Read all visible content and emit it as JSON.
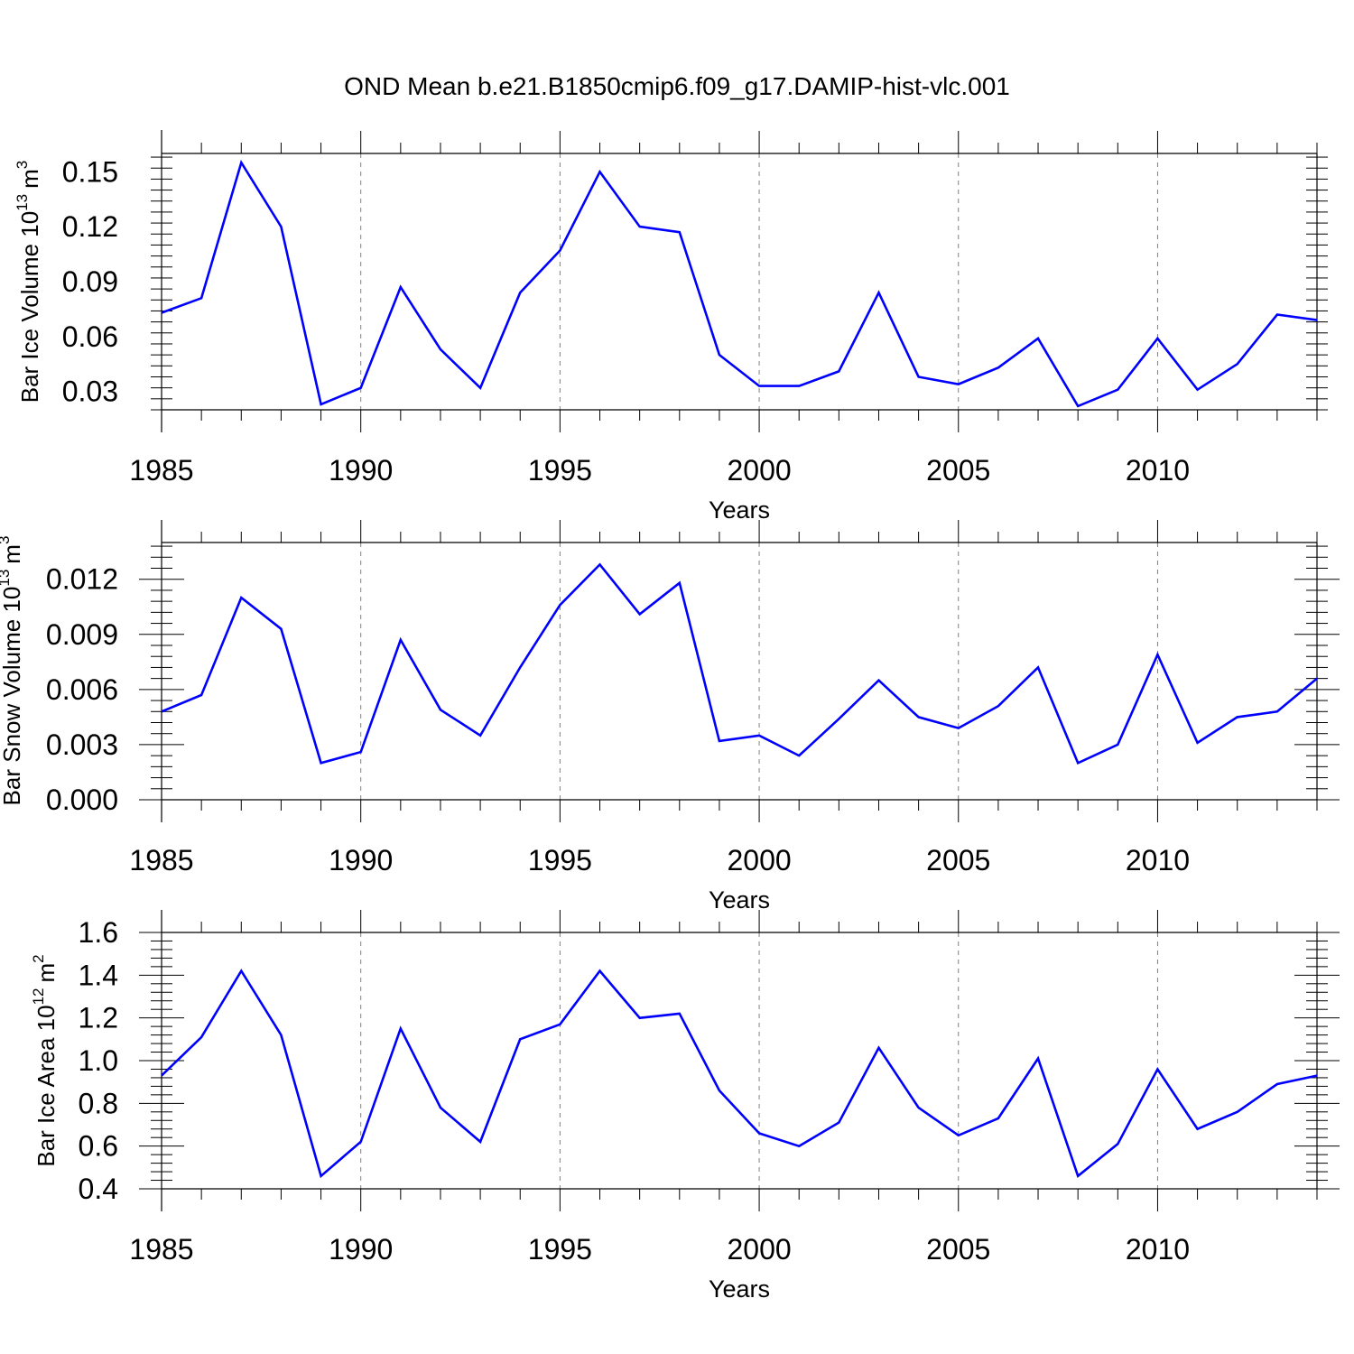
{
  "title": "OND Mean b.e21.B1850cmip6.f09_g17.DAMIP-hist-vlc.001",
  "colors": {
    "line": "#0000ff",
    "axis": "#000000",
    "grid": "#808080"
  },
  "chart_data": [
    {
      "type": "line",
      "xlabel": "Years",
      "ylabel_main": "Bar Ice Volume 10",
      "ylabel_exp": "13",
      "ylabel_unit": "m",
      "ylabel_unit_exp": "3",
      "xlim": [
        1985,
        2014
      ],
      "ylim": [
        0.02,
        0.16
      ],
      "xticks": [
        "1985",
        "1990",
        "1995",
        "2000",
        "2005",
        "2010"
      ],
      "yticks": [
        "0.03",
        "0.06",
        "0.09",
        "0.12",
        "0.15"
      ],
      "x": [
        1985,
        1986,
        1987,
        1988,
        1989,
        1990,
        1991,
        1992,
        1993,
        1994,
        1995,
        1996,
        1997,
        1998,
        1999,
        2000,
        2001,
        2002,
        2003,
        2004,
        2005,
        2006,
        2007,
        2008,
        2009,
        2010,
        2011,
        2012,
        2013,
        2014
      ],
      "values": [
        0.073,
        0.081,
        0.155,
        0.12,
        0.023,
        0.032,
        0.087,
        0.053,
        0.032,
        0.084,
        0.107,
        0.15,
        0.12,
        0.117,
        0.05,
        0.033,
        0.033,
        0.041,
        0.084,
        0.038,
        0.034,
        0.043,
        0.059,
        0.022,
        0.031,
        0.059,
        0.031,
        0.045,
        0.072,
        0.069
      ]
    },
    {
      "type": "line",
      "xlabel": "Years",
      "ylabel_main": "Bar Snow Volume 10",
      "ylabel_exp": "13",
      "ylabel_unit": "m",
      "ylabel_unit_exp": "3",
      "xlim": [
        1985,
        2014
      ],
      "ylim": [
        0.0,
        0.014
      ],
      "xticks": [
        "1985",
        "1990",
        "1995",
        "2000",
        "2005",
        "2010"
      ],
      "yticks": [
        "0.000",
        "0.003",
        "0.006",
        "0.009",
        "0.012"
      ],
      "x": [
        1985,
        1986,
        1987,
        1988,
        1989,
        1990,
        1991,
        1992,
        1993,
        1994,
        1995,
        1996,
        1997,
        1998,
        1999,
        2000,
        2001,
        2002,
        2003,
        2004,
        2005,
        2006,
        2007,
        2008,
        2009,
        2010,
        2011,
        2012,
        2013,
        2014
      ],
      "values": [
        0.0048,
        0.0057,
        0.011,
        0.0093,
        0.002,
        0.0026,
        0.0087,
        0.0049,
        0.0035,
        0.0072,
        0.0106,
        0.0128,
        0.0101,
        0.0118,
        0.0032,
        0.0035,
        0.0024,
        0.0044,
        0.0065,
        0.0045,
        0.0039,
        0.0051,
        0.0072,
        0.002,
        0.003,
        0.0079,
        0.0031,
        0.0045,
        0.0048,
        0.0066
      ]
    },
    {
      "type": "line",
      "xlabel": "Years",
      "ylabel_main": "Bar Ice Area 10",
      "ylabel_exp": "12",
      "ylabel_unit": "m",
      "ylabel_unit_exp": "2",
      "xlim": [
        1985,
        2014
      ],
      "ylim": [
        0.4,
        1.6
      ],
      "xticks": [
        "1985",
        "1990",
        "1995",
        "2000",
        "2005",
        "2010"
      ],
      "yticks": [
        "0.4",
        "0.6",
        "0.8",
        "1.0",
        "1.2",
        "1.4",
        "1.6"
      ],
      "x": [
        1985,
        1986,
        1987,
        1988,
        1989,
        1990,
        1991,
        1992,
        1993,
        1994,
        1995,
        1996,
        1997,
        1998,
        1999,
        2000,
        2001,
        2002,
        2003,
        2004,
        2005,
        2006,
        2007,
        2008,
        2009,
        2010,
        2011,
        2012,
        2013,
        2014
      ],
      "values": [
        0.93,
        1.11,
        1.42,
        1.12,
        0.46,
        0.62,
        1.15,
        0.78,
        0.62,
        1.1,
        1.17,
        1.42,
        1.2,
        1.22,
        0.86,
        0.66,
        0.6,
        0.71,
        1.06,
        0.78,
        0.65,
        0.73,
        1.01,
        0.46,
        0.61,
        0.96,
        0.68,
        0.76,
        0.89,
        0.93
      ]
    }
  ]
}
